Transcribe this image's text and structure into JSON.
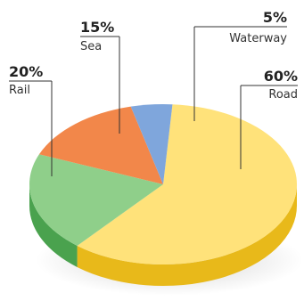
{
  "chart_data": {
    "type": "pie",
    "categories": [
      "Road",
      "Rail",
      "Sea",
      "Waterway"
    ],
    "values": [
      60,
      20,
      15,
      5
    ],
    "value_labels": [
      "60%",
      "20%",
      "15%",
      "5%"
    ],
    "colors": {
      "Road": "#ffe27a",
      "Rail": "#8fcf8a",
      "Sea": "#f2874a",
      "Waterway": "#7fa6dc"
    },
    "side_colors": {
      "Road": "#e8b91a",
      "Rail": "#4aa24e",
      "Sea": "#d9622a",
      "Waterway": "#4f78b8"
    },
    "style": "3d"
  }
}
